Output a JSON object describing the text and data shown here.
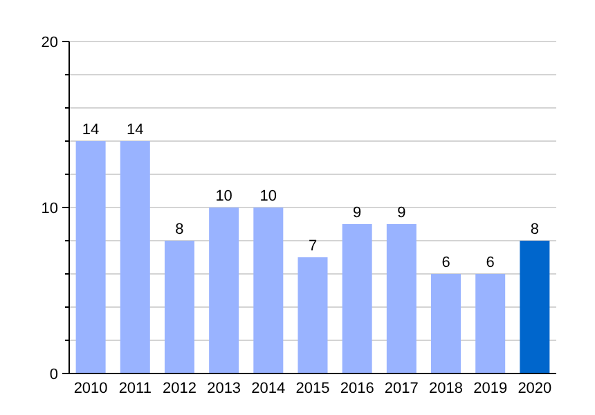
{
  "chart_data": {
    "type": "bar",
    "categories": [
      "2010",
      "2011",
      "2012",
      "2013",
      "2014",
      "2015",
      "2016",
      "2017",
      "2018",
      "2019",
      "2020"
    ],
    "values": [
      14,
      14,
      8,
      10,
      10,
      7,
      9,
      9,
      6,
      6,
      8
    ],
    "colors": [
      "#99b3ff",
      "#99b3ff",
      "#99b3ff",
      "#99b3ff",
      "#99b3ff",
      "#99b3ff",
      "#99b3ff",
      "#99b3ff",
      "#99b3ff",
      "#99b3ff",
      "#0066cc"
    ],
    "ylim": [
      0,
      20
    ],
    "yticks": [
      0,
      {
        "value": 2,
        "label": null
      },
      {
        "value": 4,
        "label": null
      },
      {
        "value": 6,
        "label": null
      },
      {
        "value": 8,
        "label": null
      },
      10,
      {
        "value": 12,
        "label": null
      },
      {
        "value": 14,
        "label": null
      },
      {
        "value": 16,
        "label": null
      },
      {
        "value": 18,
        "label": null
      },
      20
    ],
    "grid": true,
    "data_labels": true
  }
}
